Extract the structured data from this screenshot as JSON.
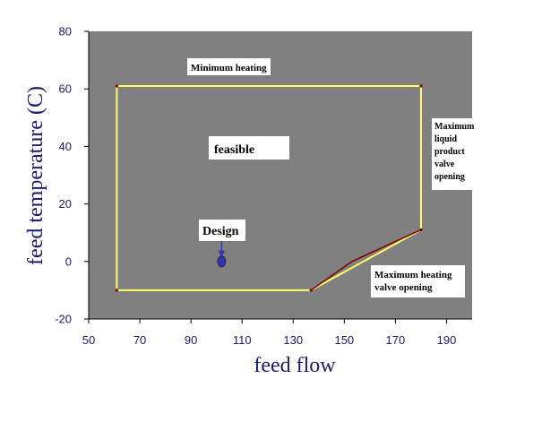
{
  "chart_data": {
    "type": "line",
    "title": "",
    "xlabel": "feed flow",
    "ylabel": "feed temperature (C)",
    "xlim": [
      50,
      200
    ],
    "ylim": [
      -20,
      80
    ],
    "x_ticks": [
      50,
      70,
      90,
      110,
      130,
      150,
      170,
      190
    ],
    "y_ticks": [
      -20,
      0,
      20,
      40,
      60,
      80
    ],
    "grid": false,
    "colors": {
      "plot_background": "#808080",
      "boundary": "#ffff66",
      "maximum_heating_valve_line": "#800000",
      "design_point": "#3333aa",
      "axis_text": "#1a1a6e"
    },
    "series": [
      {
        "role": "feasible-region-boundary",
        "x": [
          61,
          180,
          180,
          137,
          61,
          61
        ],
        "y": [
          61,
          61,
          11,
          -10,
          -10,
          61
        ]
      },
      {
        "role": "maximum-heating-valve-opening-line",
        "x": [
          137,
          153,
          180
        ],
        "y": [
          -10,
          0,
          11
        ]
      }
    ],
    "points": [
      {
        "label": "Design",
        "x": 102,
        "y": 0
      }
    ],
    "annotations": [
      {
        "key": "min_heating",
        "lines": [
          "Minimum heating"
        ]
      },
      {
        "key": "feasible",
        "lines": [
          "feasible"
        ]
      },
      {
        "key": "max_liquid",
        "lines": [
          "Maximum",
          "liquid",
          "product",
          "valve",
          "opening"
        ]
      },
      {
        "key": "design",
        "lines": [
          "Design"
        ]
      },
      {
        "key": "max_heating_valve",
        "lines": [
          "Maximum heating",
          "valve opening"
        ]
      }
    ]
  }
}
